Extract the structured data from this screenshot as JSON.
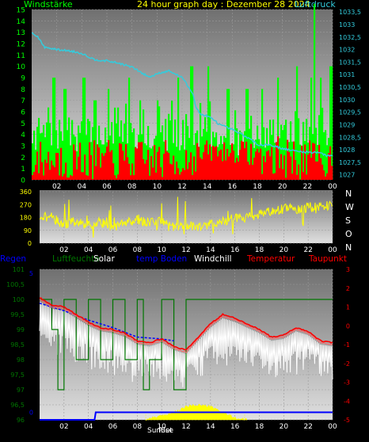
{
  "header": {
    "left_label": "Windstärke",
    "title": "24 hour graph day : Dezember 28 2024",
    "right_label": "Luftdruck"
  },
  "colors": {
    "wind_gust": "#00ff00",
    "wind_avg": "#ff0000",
    "pressure": "#33ccdd",
    "direction": "#ffff00",
    "rain": "#0000ff",
    "humidity": "#007700",
    "solar": "#ffff00",
    "ground_temp": "#0000ff",
    "windchill": "#ffffff",
    "temperature": "#ff0000",
    "dewpoint": "#ff6666"
  },
  "x_ticks": [
    "02",
    "04",
    "06",
    "08",
    "10",
    "12",
    "14",
    "16",
    "18",
    "20",
    "22",
    "00"
  ],
  "legend": {
    "rain": "Regen",
    "humidity": "Luftfeuchte",
    "solar": "Solar",
    "ground_temp": "temp Boden",
    "windchill": "Windchill",
    "temperature": "Temperatur",
    "dewpoint": "Taupunkt"
  },
  "sun_labels": {
    "set": "SunSet",
    "rise": "Rise"
  },
  "dir_labels": [
    "N",
    "W",
    "S",
    "O",
    "N"
  ],
  "chart_data": [
    {
      "type": "bar",
      "title": "24 hour graph day : Dezember 28 2024",
      "y_left_label": "Windstärke",
      "y_right_label": "Luftdruck",
      "y_left_ticks": [
        "0",
        "1",
        "2",
        "3",
        "4",
        "5",
        "6",
        "7",
        "8",
        "9",
        "10",
        "11",
        "12",
        "13",
        "14",
        "15"
      ],
      "y_left_range": [
        0,
        15
      ],
      "y_right_ticks": [
        "1027",
        "1027,5",
        "1028",
        "1028,5",
        "1029",
        "1029,5",
        "1030",
        "1030,5",
        "1031",
        "1031,5",
        "1032",
        "1032,5",
        "1033",
        "1033,5"
      ],
      "y_right_range": [
        1026.8,
        1033.6
      ],
      "x_range_hours": [
        0,
        24
      ],
      "grid": true,
      "series": [
        {
          "key": "gust",
          "color_ref": "wind_gust",
          "band": [
            [
              0,
              2.5,
              5.5
            ],
            [
              3,
              2.5,
              5.5
            ],
            [
              6,
              2.5,
              5.5
            ],
            [
              9,
              2.5,
              5.5
            ],
            [
              12,
              2.5,
              5.5
            ],
            [
              12.7,
              2.5,
              5.5
            ],
            [
              14,
              2.5,
              4.5
            ],
            [
              16,
              2.0,
              4.5
            ],
            [
              19,
              2.5,
              5.5
            ],
            [
              22,
              2.5,
              5.5
            ],
            [
              24,
              2.5,
              5.5
            ]
          ],
          "peaks": [
            [
              1.7,
              9
            ],
            [
              2.6,
              8
            ],
            [
              4.1,
              9
            ],
            [
              5.0,
              7
            ],
            [
              6.1,
              8
            ],
            [
              7.7,
              9
            ],
            [
              8.6,
              7
            ],
            [
              10.0,
              7
            ],
            [
              11.6,
              9
            ],
            [
              12.7,
              10
            ],
            [
              14.0,
              10
            ],
            [
              15.6,
              8
            ],
            [
              17.1,
              8
            ],
            [
              18.3,
              8
            ],
            [
              19.6,
              9
            ],
            [
              21.1,
              10
            ],
            [
              22.2,
              9
            ],
            [
              22.5,
              16
            ],
            [
              23.0,
              9
            ],
            [
              23.8,
              10
            ]
          ]
        },
        {
          "key": "avg",
          "color_ref": "wind_avg",
          "band": [
            [
              0,
              0,
              3.5
            ],
            [
              3,
              0,
              3.5
            ],
            [
              6,
              0,
              3.5
            ],
            [
              9,
              0,
              3.5
            ],
            [
              12,
              0,
              3.5
            ],
            [
              13,
              0.5,
              3.5
            ],
            [
              14,
              1.5,
              3.5
            ],
            [
              17,
              1.5,
              3.5
            ],
            [
              18,
              0.5,
              3.5
            ],
            [
              20,
              0,
              4.0
            ],
            [
              22,
              0,
              3.5
            ],
            [
              24,
              0,
              3.5
            ]
          ]
        },
        {
          "key": "pressure",
          "color_ref": "pressure",
          "points": [
            [
              0,
              1032.7
            ],
            [
              0.5,
              1032.5
            ],
            [
              1,
              1032.1
            ],
            [
              2,
              1032.0
            ],
            [
              3,
              1031.95
            ],
            [
              4,
              1031.85
            ],
            [
              5,
              1031.6
            ],
            [
              6,
              1031.55
            ],
            [
              7,
              1031.45
            ],
            [
              8,
              1031.3
            ],
            [
              9,
              1031.0
            ],
            [
              9.5,
              1030.9
            ],
            [
              10,
              1031.05
            ],
            [
              10.5,
              1031.1
            ],
            [
              11,
              1031.15
            ],
            [
              11.5,
              1031.0
            ],
            [
              12,
              1030.9
            ],
            [
              12.5,
              1030.5
            ],
            [
              12.9,
              1030.2
            ],
            [
              13.1,
              1029.7
            ],
            [
              13.5,
              1029.4
            ],
            [
              14,
              1029.35
            ],
            [
              14.5,
              1029.2
            ],
            [
              15,
              1029.0
            ],
            [
              16,
              1028.8
            ],
            [
              17,
              1028.55
            ],
            [
              17.5,
              1028.4
            ],
            [
              18,
              1028.2
            ],
            [
              19,
              1028.2
            ],
            [
              20,
              1028.05
            ],
            [
              21,
              1027.95
            ],
            [
              22,
              1027.9
            ],
            [
              23,
              1027.9
            ],
            [
              23.5,
              1027.75
            ],
            [
              24,
              1027.8
            ]
          ]
        }
      ]
    },
    {
      "type": "scatter",
      "y_ticks": [
        "0",
        "90",
        "180",
        "270",
        "360"
      ],
      "y_range": [
        0,
        360
      ],
      "x_range_hours": [
        0,
        24
      ],
      "grid": true,
      "series": [
        {
          "key": "direction",
          "color_ref": "direction",
          "points": [
            [
              0,
              190
            ],
            [
              1,
              180
            ],
            [
              2,
              130
            ],
            [
              3,
              155
            ],
            [
              4,
              120
            ],
            [
              5,
              150
            ],
            [
              6,
              110
            ],
            [
              7,
              140
            ],
            [
              8,
              170
            ],
            [
              9,
              140
            ],
            [
              10,
              150
            ],
            [
              11,
              120
            ],
            [
              12,
              130
            ],
            [
              13,
              110
            ],
            [
              14,
              140
            ],
            [
              15,
              150
            ],
            [
              16,
              170
            ],
            [
              17,
              180
            ],
            [
              18,
              200
            ],
            [
              19,
              220
            ],
            [
              20,
              240
            ],
            [
              21,
              240
            ],
            [
              22,
              250
            ],
            [
              23,
              260
            ],
            [
              24,
              260
            ]
          ]
        }
      ]
    },
    {
      "type": "line",
      "y_left_ticks": [
        "96",
        "96,5",
        "97",
        "97,5",
        "98",
        "98,5",
        "99",
        "99,5",
        "100",
        "100,5",
        "101"
      ],
      "y_left_range": [
        96,
        101
      ],
      "y_right_ticks": [
        "-5",
        "-4",
        "-3",
        "-2",
        "-1",
        "0",
        "1",
        "2",
        "3"
      ],
      "y_right_range": [
        -5,
        3
      ],
      "y_rain_ticks": [
        "0",
        "5"
      ],
      "x_range_hours": [
        0,
        24
      ],
      "grid": true,
      "series": [
        {
          "key": "temperature",
          "color_ref": "temperature",
          "points": [
            [
              0,
              1.5
            ],
            [
              1,
              1.1
            ],
            [
              2,
              1.0
            ],
            [
              3,
              0.6
            ],
            [
              4,
              0.2
            ],
            [
              5,
              -0.1
            ],
            [
              6,
              -0.2
            ],
            [
              7,
              -0.4
            ],
            [
              8,
              -0.8
            ],
            [
              9,
              -0.9
            ],
            [
              10,
              -0.7
            ],
            [
              11,
              -1.1
            ],
            [
              12,
              -1.3
            ],
            [
              13,
              -0.6
            ],
            [
              14,
              0.1
            ],
            [
              15,
              0.6
            ],
            [
              16,
              0.4
            ],
            [
              17,
              0.1
            ],
            [
              18,
              -0.2
            ],
            [
              19,
              -0.6
            ],
            [
              20,
              -0.5
            ],
            [
              21,
              -0.1
            ],
            [
              22,
              -0.3
            ],
            [
              23,
              -0.8
            ],
            [
              24,
              -0.9
            ]
          ]
        },
        {
          "key": "dewpoint",
          "color_ref": "dewpoint",
          "points": [
            [
              0,
              1.4
            ],
            [
              1,
              1.0
            ],
            [
              2,
              0.9
            ],
            [
              3,
              0.5
            ],
            [
              4,
              0.1
            ],
            [
              5,
              -0.2
            ],
            [
              6,
              -0.3
            ],
            [
              7,
              -0.5
            ],
            [
              8,
              -0.9
            ],
            [
              9,
              -1.0
            ],
            [
              10,
              -0.8
            ],
            [
              11,
              -1.2
            ],
            [
              12,
              -1.4
            ],
            [
              13,
              -0.7
            ],
            [
              14,
              0.0
            ],
            [
              15,
              0.5
            ],
            [
              16,
              0.3
            ],
            [
              17,
              0.0
            ],
            [
              18,
              -0.3
            ],
            [
              19,
              -0.7
            ],
            [
              20,
              -0.6
            ],
            [
              21,
              -0.2
            ],
            [
              22,
              -0.4
            ],
            [
              23,
              -0.9
            ],
            [
              24,
              -1.0
            ]
          ]
        },
        {
          "key": "windchill",
          "color_ref": "windchill",
          "points": [
            [
              0,
              0.2
            ],
            [
              2,
              -0.5
            ],
            [
              4,
              -1.0
            ],
            [
              6,
              -1.3
            ],
            [
              8,
              -1.8
            ],
            [
              10,
              -1.6
            ],
            [
              12,
              -2.2
            ],
            [
              14,
              -1.0
            ],
            [
              16,
              -0.9
            ],
            [
              18,
              -1.3
            ],
            [
              20,
              -1.5
            ],
            [
              22,
              -1.2
            ],
            [
              24,
              -2.0
            ]
          ]
        },
        {
          "key": "ground_temp",
          "color_ref": "ground_temp",
          "points": [
            [
              0,
              1.2
            ],
            [
              2,
              0.8
            ],
            [
              4,
              0.3
            ],
            [
              6,
              -0.1
            ],
            [
              8,
              -0.6
            ],
            [
              10,
              -0.7
            ],
            [
              11,
              -0.8
            ]
          ]
        },
        {
          "key": "humidity",
          "color_ref": "humidity",
          "points": [
            [
              0,
              100
            ],
            [
              1,
              99
            ],
            [
              1.5,
              97
            ],
            [
              2,
              100
            ],
            [
              3,
              98
            ],
            [
              4,
              100
            ],
            [
              5,
              98
            ],
            [
              6,
              100
            ],
            [
              7,
              98
            ],
            [
              8,
              100
            ],
            [
              8.5,
              97
            ],
            [
              9,
              98
            ],
            [
              10,
              100
            ],
            [
              11,
              97
            ],
            [
              12,
              100
            ],
            [
              24,
              100
            ]
          ]
        },
        {
          "key": "solar",
          "color_ref": "solar",
          "points": [
            [
              0,
              -5
            ],
            [
              8.7,
              -5
            ],
            [
              9,
              -4.9
            ],
            [
              10,
              -4.8
            ],
            [
              11,
              -4.6
            ],
            [
              11.5,
              -4.5
            ],
            [
              12,
              -4.3
            ],
            [
              13,
              -4.2
            ],
            [
              14,
              -4.3
            ],
            [
              15,
              -4.6
            ],
            [
              16,
              -4.9
            ],
            [
              17,
              -5
            ],
            [
              24,
              -5
            ]
          ]
        },
        {
          "key": "rain",
          "color_ref": "rain",
          "points": [
            [
              0,
              -5
            ],
            [
              4.5,
              -5
            ],
            [
              4.6,
              -4.6
            ],
            [
              24,
              -4.6
            ]
          ]
        }
      ]
    }
  ]
}
